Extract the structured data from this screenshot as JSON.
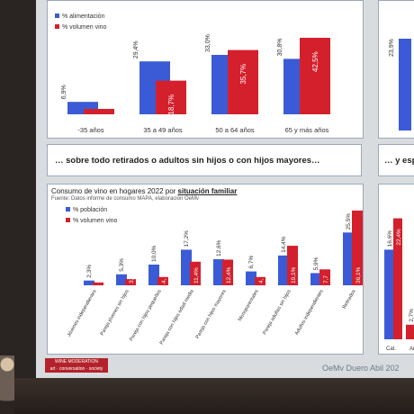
{
  "top_chart": {
    "legend": [
      "% alimentación",
      "% volumen vino"
    ],
    "categories": [
      "-35 años",
      "35 a 49 años",
      "50 a 64 años",
      "65 y más años"
    ],
    "alim_labels": [
      "6,9%",
      "29,4%",
      "33,0%",
      "30,8%"
    ],
    "vino_labels": [
      "3,0",
      "18,7%",
      "35,7%",
      "42,5%"
    ],
    "alimentacion": [
      6.9,
      29.4,
      33.0,
      30.8
    ],
    "volumen_vino": [
      3.0,
      18.7,
      35.7,
      42.5
    ]
  },
  "right_top": {
    "values": [
      "23,9%"
    ]
  },
  "banner": {
    "text": "… sobre todo retirados o adultos sin hijos o con hijos mayores…"
  },
  "banner_right": {
    "text": "… y esp"
  },
  "bottom_chart": {
    "title_prefix": "Consumo de vino en hogares 2022 por ",
    "title_bold": "situación familiar",
    "source": "Fuente: Datos informe de consumo MAPA, elaboración OeMv",
    "legend": [
      "% población",
      "% volumen vino"
    ],
    "categories": [
      "Jóvenes independientes",
      "Pareja jóvenes sin hijos",
      "Pareja con hijos pequeños",
      "Pareja con hijos edad media",
      "Pareja con hijos mayores",
      "Monoparentales",
      "Pareja adultas sin hijos",
      "Adultos independientes",
      "Retirados"
    ],
    "pob_labels": [
      "2,3%",
      "5,3%",
      "10,0%",
      "17,2%",
      "12,6%",
      "6,7%",
      "14,4%",
      "5,9%",
      "25,5%"
    ],
    "vino_labels": [
      "1,4%",
      "3,",
      "4,",
      "11,4%",
      "12,4%",
      "4,",
      "19,1%",
      "7,7",
      "36,1%"
    ],
    "poblacion": [
      2.3,
      5.3,
      10.0,
      17.2,
      12.6,
      6.7,
      14.4,
      5.9,
      25.5
    ],
    "volumen_vino": [
      1.4,
      3.0,
      4.0,
      11.4,
      12.4,
      4.0,
      19.1,
      7.7,
      36.1
    ]
  },
  "right_bottom": {
    "labels": [
      "16,6%",
      "22,4%",
      "2,7%"
    ],
    "values": [
      16.6,
      22.4,
      2.7
    ],
    "categories": [
      "Cat.",
      "Ar"
    ]
  },
  "footer": {
    "logo_line1": "WINE  MODERATION",
    "logo_line2": "art · conversation · society",
    "text": "OeMv Duero Abil 202"
  },
  "colors": {
    "blue": "#3b5bd6",
    "red": "#d4202c",
    "panel_border": "#9aa8b8"
  }
}
